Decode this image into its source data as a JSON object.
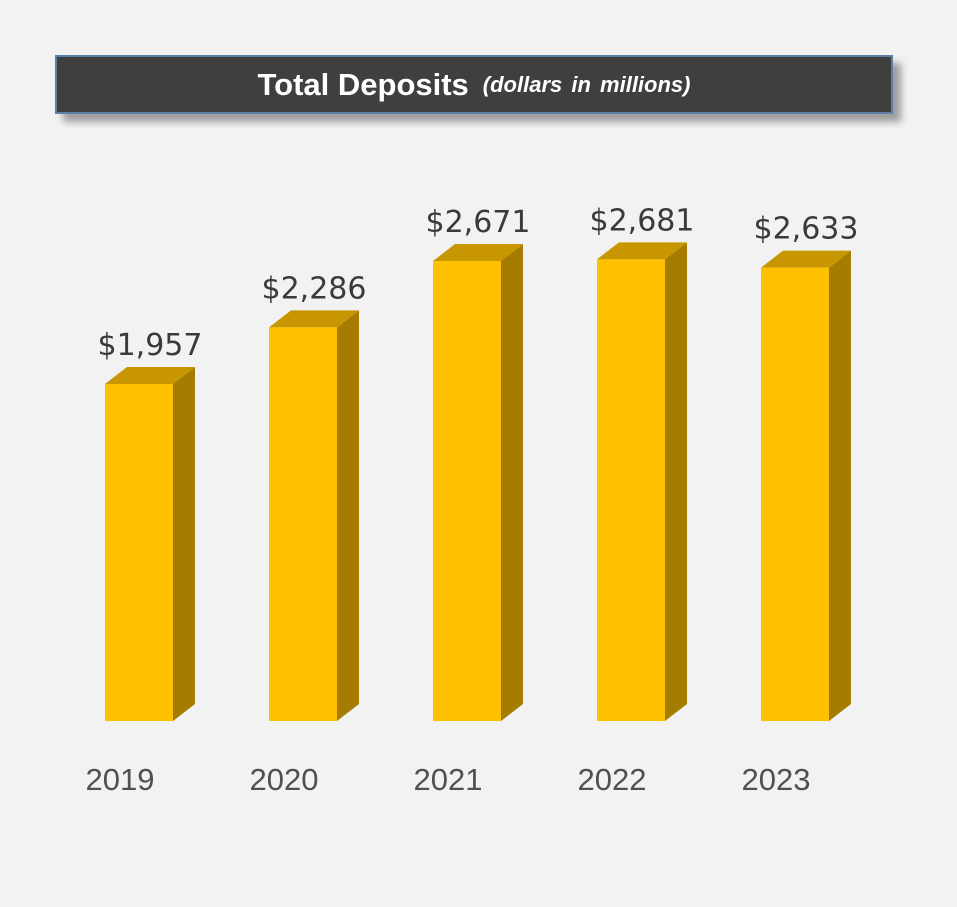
{
  "header": {
    "title": "Total Deposits",
    "subtitle": "(dollars in millions)"
  },
  "chart_data": {
    "type": "bar",
    "title": "Total Deposits",
    "subtitle": "(dollars in millions)",
    "categories": [
      "2019",
      "2020",
      "2021",
      "2022",
      "2023"
    ],
    "values": [
      1957,
      2286,
      2671,
      2681,
      2633
    ],
    "value_labels": [
      "$1,957",
      "$2,286",
      "$2,671",
      "$2,681",
      "$2,633"
    ],
    "xlabel": "",
    "ylabel": "",
    "ylim": [
      0,
      3000
    ],
    "grid": false,
    "legend": "none",
    "style": "3d-columns",
    "colors": {
      "front": "#ffc000",
      "side": "#a67c00",
      "top": "#c89600"
    }
  }
}
